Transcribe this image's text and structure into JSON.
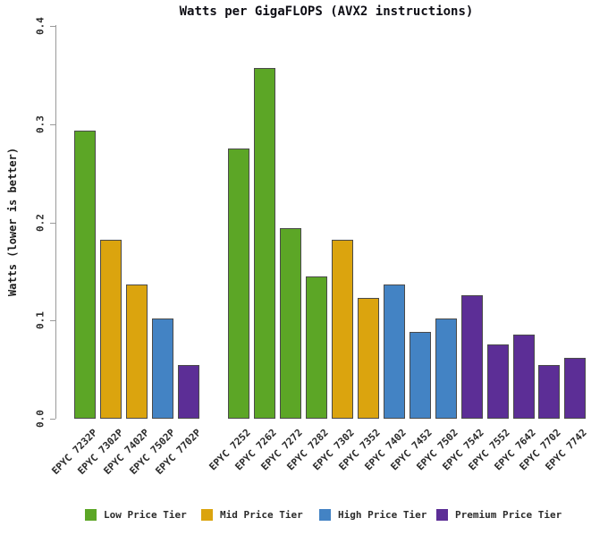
{
  "title": "Watts per GigaFLOPS (AVX2 instructions)",
  "y_axis": {
    "label": "Watts (lower is better)",
    "tick_labels": [
      "0.0",
      "0.1",
      "0.2",
      "0.3",
      "0.4"
    ],
    "tick_values": [
      0.0,
      0.1,
      0.2,
      0.3,
      0.4
    ]
  },
  "colors": {
    "low_tier": "#5ca626",
    "mid_tier": "#dba40e",
    "high_tier": "#4383c4",
    "premium_tier": "#5c2e96",
    "bar_border": "#4a4a4a",
    "axis": "#9a9a9a"
  },
  "chart_data": {
    "type": "bar",
    "title": "Watts per GigaFLOPS (AVX2 instructions)",
    "xlabel": "",
    "ylabel": "Watts (lower is better)",
    "ylim": [
      0,
      0.4
    ],
    "yticks": [
      0.0,
      0.1,
      0.2,
      0.3,
      0.4
    ],
    "grid": false,
    "legend_position": "bottom",
    "tier_colors": {
      "low": "#5ca626",
      "mid": "#dba40e",
      "high": "#4383c4",
      "premium": "#5c2e96"
    },
    "groups": [
      {
        "bars": [
          {
            "label": "EPYC 7232P",
            "value": 0.293,
            "tier": "low"
          },
          {
            "label": "EPYC 7302P",
            "value": 0.182,
            "tier": "mid"
          },
          {
            "label": "EPYC 7402P",
            "value": 0.137,
            "tier": "mid"
          },
          {
            "label": "EPYC 7502P",
            "value": 0.102,
            "tier": "high"
          },
          {
            "label": "EPYC 7702P",
            "value": 0.055,
            "tier": "premium"
          }
        ]
      },
      {
        "bars": [
          {
            "label": "EPYC 7252",
            "value": 0.275,
            "tier": "low"
          },
          {
            "label": "EPYC 7262",
            "value": 0.357,
            "tier": "low"
          },
          {
            "label": "EPYC 7272",
            "value": 0.194,
            "tier": "low"
          },
          {
            "label": "EPYC 7282",
            "value": 0.145,
            "tier": "low"
          },
          {
            "label": "EPYC 7302",
            "value": 0.182,
            "tier": "mid"
          },
          {
            "label": "EPYC 7352",
            "value": 0.123,
            "tier": "mid"
          },
          {
            "label": "EPYC 7402",
            "value": 0.137,
            "tier": "high"
          },
          {
            "label": "EPYC 7452",
            "value": 0.088,
            "tier": "high"
          },
          {
            "label": "EPYC 7502",
            "value": 0.102,
            "tier": "high"
          },
          {
            "label": "EPYC 7542",
            "value": 0.126,
            "tier": "premium"
          },
          {
            "label": "EPYC 7552",
            "value": 0.076,
            "tier": "premium"
          },
          {
            "label": "EPYC 7642",
            "value": 0.086,
            "tier": "premium"
          },
          {
            "label": "EPYC 7702",
            "value": 0.055,
            "tier": "premium"
          },
          {
            "label": "EPYC 7742",
            "value": 0.062,
            "tier": "premium"
          }
        ]
      }
    ],
    "legend": [
      {
        "label": "Low Price Tier",
        "tier": "low"
      },
      {
        "label": "Mid Price Tier",
        "tier": "mid"
      },
      {
        "label": "High Price Tier",
        "tier": "high"
      },
      {
        "label": "Premium Price Tier",
        "tier": "premium"
      }
    ]
  }
}
